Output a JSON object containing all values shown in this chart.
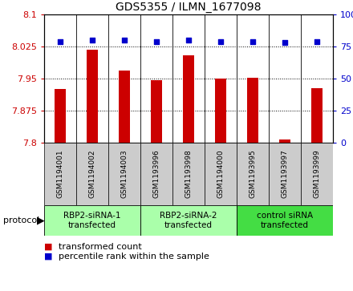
{
  "title": "GDS5355 / ILMN_1677098",
  "samples": [
    "GSM1194001",
    "GSM1194002",
    "GSM1194003",
    "GSM1193996",
    "GSM1193998",
    "GSM1194000",
    "GSM1193995",
    "GSM1193997",
    "GSM1193999"
  ],
  "transformed_count": [
    7.925,
    8.018,
    7.968,
    7.947,
    8.005,
    7.95,
    7.952,
    7.807,
    7.928
  ],
  "percentile_rank": [
    79,
    80,
    80,
    79,
    80,
    79,
    79,
    78,
    79
  ],
  "ylim_left": [
    7.8,
    8.1
  ],
  "ylim_right": [
    0,
    100
  ],
  "yticks_left": [
    7.8,
    7.875,
    7.95,
    8.025,
    8.1
  ],
  "yticks_right": [
    0,
    25,
    50,
    75,
    100
  ],
  "groups": [
    {
      "label": "RBP2-siRNA-1\ntransfected",
      "indices": [
        0,
        1,
        2
      ],
      "color": "#AAFFAA"
    },
    {
      "label": "RBP2-siRNA-2\ntransfected",
      "indices": [
        3,
        4,
        5
      ],
      "color": "#AAFFAA"
    },
    {
      "label": "control siRNA\ntransfected",
      "indices": [
        6,
        7,
        8
      ],
      "color": "#44DD44"
    }
  ],
  "bar_color": "#CC0000",
  "dot_color": "#0000CC",
  "label_color_left": "#CC0000",
  "label_color_right": "#0000CC",
  "bg_label": "#CCCCCC",
  "legend_items": [
    {
      "color": "#CC0000",
      "label": "transformed count"
    },
    {
      "color": "#0000CC",
      "label": "percentile rank within the sample"
    }
  ]
}
